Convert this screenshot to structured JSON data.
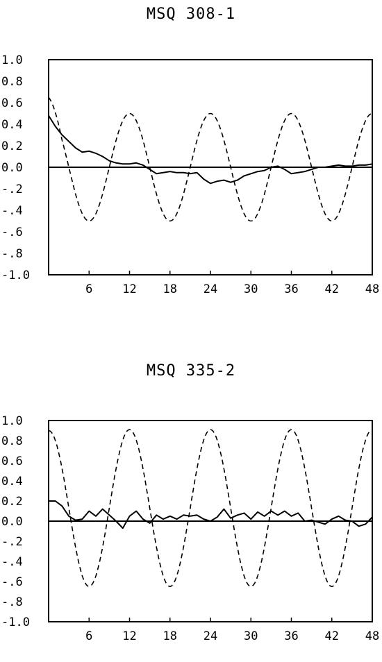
{
  "chart_data": [
    {
      "type": "line",
      "title": "MSQ 308-1",
      "xlabel": "",
      "ylabel": "",
      "xlim": [
        0,
        48
      ],
      "ylim": [
        -1.0,
        1.0
      ],
      "xticks": [
        "6",
        "12",
        "18",
        "24",
        "30",
        "36",
        "42",
        "48"
      ],
      "yticks": [
        "1.0",
        "0.8",
        "0.6",
        "0.4",
        "0.2",
        "0.0",
        "-.2",
        "-.4",
        "-.6",
        "-.8",
        "-1.0"
      ],
      "grid": false,
      "legend": "none",
      "series": [
        {
          "style": "solid",
          "x": [
            0,
            1,
            2,
            3,
            4,
            5,
            6,
            7,
            8,
            9,
            10,
            11,
            12,
            13,
            14,
            15,
            16,
            17,
            18,
            19,
            20,
            21,
            22,
            23,
            24,
            25,
            26,
            27,
            28,
            29,
            30,
            31,
            32,
            33,
            34,
            35,
            36,
            37,
            38,
            39,
            40,
            41,
            42,
            43,
            44,
            45,
            46,
            47,
            48
          ],
          "values": [
            0.48,
            0.38,
            0.3,
            0.24,
            0.18,
            0.14,
            0.15,
            0.13,
            0.1,
            0.06,
            0.04,
            0.03,
            0.03,
            0.04,
            0.02,
            -0.02,
            -0.06,
            -0.05,
            -0.04,
            -0.05,
            -0.05,
            -0.06,
            -0.05,
            -0.11,
            -0.15,
            -0.13,
            -0.12,
            -0.14,
            -0.12,
            -0.08,
            -0.06,
            -0.04,
            -0.03,
            0.0,
            0.01,
            -0.02,
            -0.06,
            -0.05,
            -0.04,
            -0.02,
            0.0,
            0.0,
            0.01,
            0.02,
            0.01,
            0.01,
            0.02,
            0.02,
            0.03
          ]
        },
        {
          "style": "dashed",
          "function": "cosine",
          "period": 12,
          "amplitude": 0.5,
          "start_value": 0.65
        }
      ]
    },
    {
      "type": "line",
      "title": "MSQ 335-2",
      "xlabel": "",
      "ylabel": "",
      "xlim": [
        0,
        48
      ],
      "ylim": [
        -1.0,
        1.0
      ],
      "xticks": [
        "6",
        "12",
        "18",
        "24",
        "30",
        "36",
        "42",
        "48"
      ],
      "yticks": [
        "1.0",
        "0.8",
        "0.6",
        "0.4",
        "0.2",
        "0.0",
        "-.2",
        "-.4",
        "-.6",
        "-.8",
        "-1.0"
      ],
      "grid": false,
      "legend": "none",
      "series": [
        {
          "style": "solid",
          "x": [
            0,
            1,
            2,
            3,
            4,
            5,
            6,
            7,
            8,
            9,
            10,
            11,
            12,
            13,
            14,
            15,
            16,
            17,
            18,
            19,
            20,
            21,
            22,
            23,
            24,
            25,
            26,
            27,
            28,
            29,
            30,
            31,
            32,
            33,
            34,
            35,
            36,
            37,
            38,
            39,
            40,
            41,
            42,
            43,
            44,
            45,
            46,
            47,
            48
          ],
          "values": [
            0.2,
            0.2,
            0.15,
            0.05,
            0.01,
            0.02,
            0.1,
            0.05,
            0.12,
            0.06,
            0.0,
            -0.07,
            0.05,
            0.1,
            0.02,
            -0.02,
            0.06,
            0.02,
            0.05,
            0.02,
            0.06,
            0.05,
            0.06,
            0.02,
            0.0,
            0.04,
            0.12,
            0.03,
            0.06,
            0.08,
            0.02,
            0.09,
            0.05,
            0.1,
            0.06,
            0.1,
            0.05,
            0.08,
            0.0,
            0.01,
            -0.01,
            -0.03,
            0.02,
            0.05,
            0.01,
            0.0,
            -0.05,
            -0.03,
            0.04
          ]
        },
        {
          "style": "dashed",
          "function": "cosine",
          "period": 12,
          "amplitude": 0.78,
          "offset": 0.13,
          "start_value": 0.9
        }
      ]
    }
  ]
}
